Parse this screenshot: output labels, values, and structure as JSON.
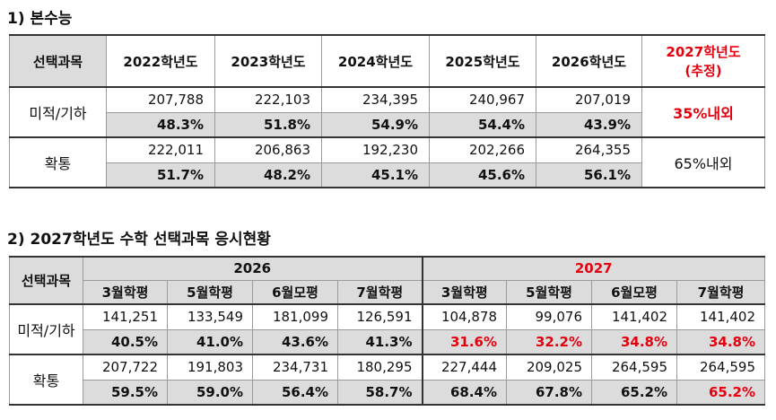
{
  "section1": {
    "heading": "1) 본수능",
    "header": [
      "선택과목",
      "2022학년도",
      "2023학년도",
      "2024학년도",
      "2025학년도",
      "2026학년도"
    ],
    "header_last_line1": "2027학년도",
    "header_last_line2": "(추정)",
    "rows": [
      {
        "label": "미적/기하",
        "counts": [
          "207,788",
          "222,103",
          "234,395",
          "240,967",
          "207,019"
        ],
        "percents": [
          "48.3%",
          "51.8%",
          "54.9%",
          "54.4%",
          "43.9%"
        ],
        "estimate": "35%내외"
      },
      {
        "label": "확통",
        "counts": [
          "222,011",
          "206,863",
          "192,230",
          "202,266",
          "264,355"
        ],
        "percents": [
          "51.7%",
          "48.2%",
          "45.1%",
          "45.6%",
          "56.1%"
        ],
        "estimate": "65%내외"
      }
    ]
  },
  "section2": {
    "heading": "2) 2027학년도 수학 선택과목 응시현황",
    "subject_header": "선택과목",
    "year_a": "2026",
    "year_b": "2027",
    "months": [
      "3월학평",
      "5월학평",
      "6월모평",
      "7월학평",
      "3월학평",
      "5월학평",
      "6월모평",
      "7월학평"
    ],
    "rows": [
      {
        "label": "미적/기하",
        "counts": [
          "141,251",
          "133,549",
          "181,099",
          "126,591",
          "104,878",
          "99,076",
          "141,402",
          "141,402"
        ],
        "percents": [
          "40.5%",
          "41.0%",
          "43.6%",
          "41.3%",
          "31.6%",
          "32.2%",
          "34.8%",
          "34.8%"
        ]
      },
      {
        "label": "확통",
        "counts": [
          "207,722",
          "191,803",
          "234,731",
          "180,295",
          "227,444",
          "209,025",
          "264,595",
          "264,595"
        ],
        "percents": [
          "59.5%",
          "59.0%",
          "56.4%",
          "58.7%",
          "68.4%",
          "67.8%",
          "65.2%",
          "65.2%"
        ]
      }
    ]
  },
  "colors": {
    "accent_red": "#e3000f",
    "gray_fill": "#dcdcdc"
  }
}
